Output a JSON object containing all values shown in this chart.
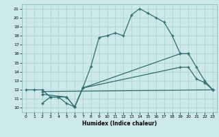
{
  "xlabel": "Humidex (Indice chaleur)",
  "bg_color": "#cce8e8",
  "line_color": "#2d6e6e",
  "xlim": [
    -0.5,
    23.5
  ],
  "ylim": [
    9.5,
    21.5
  ],
  "xticks": [
    0,
    1,
    2,
    3,
    4,
    5,
    6,
    7,
    8,
    9,
    10,
    11,
    12,
    13,
    14,
    15,
    16,
    17,
    18,
    19,
    20,
    21,
    22,
    23
  ],
  "yticks": [
    10,
    11,
    12,
    13,
    14,
    15,
    16,
    17,
    18,
    19,
    20,
    21
  ],
  "grid_color": "#aacece",
  "line1_x": [
    0,
    1,
    2,
    3,
    4,
    5,
    6,
    7,
    8,
    9,
    10,
    11,
    12,
    13,
    14,
    15,
    16,
    17,
    18,
    19,
    20,
    21,
    22,
    23
  ],
  "line1_y": [
    12,
    12,
    12,
    11.2,
    11.2,
    10.5,
    10.1,
    12.2,
    14.6,
    17.8,
    18,
    18.3,
    18,
    20.3,
    21.0,
    20.5,
    20.0,
    19.5,
    18,
    16.0,
    16.0,
    14.5,
    13.0,
    12.0
  ],
  "line2_x": [
    2,
    3,
    4,
    5,
    6,
    7,
    19,
    20
  ],
  "line2_y": [
    10.5,
    11.2,
    11.2,
    11.2,
    10.1,
    12.2,
    16.0,
    16.0
  ],
  "line3_x": [
    2,
    23
  ],
  "line3_y": [
    11.8,
    12.0
  ],
  "line4_x": [
    2,
    5,
    6,
    7,
    19,
    20,
    21,
    22,
    23
  ],
  "line4_y": [
    11.5,
    11.2,
    10.1,
    12.2,
    14.5,
    14.5,
    13.2,
    12.8,
    12.0
  ]
}
